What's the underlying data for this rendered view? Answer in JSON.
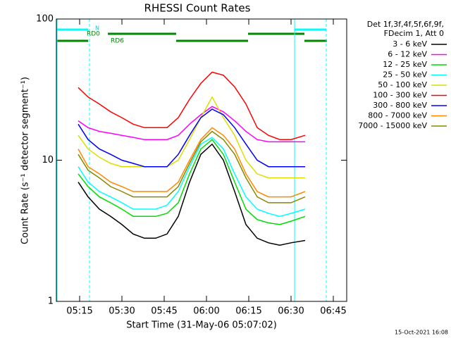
{
  "chart_data": {
    "type": "line",
    "title": "RHESSI Count Rates",
    "x_label": "Start Time (31-May-06 05:07:02)",
    "y_label": "Count Rate (s⁻¹ detector segment⁻¹)",
    "legend_title": [
      "Det 1f,3f,4f,5f,6f,9f,",
      "FDecim 1, Att 0"
    ],
    "annotations": [
      "N",
      "RD0",
      "RD6"
    ],
    "timestamp": "15-Oct-2021 16:08",
    "log_y": true,
    "xlim": [
      6.75,
      109.75
    ],
    "xticks": [
      {
        "value": 15,
        "label": "05:15"
      },
      {
        "value": 30,
        "label": "05:30"
      },
      {
        "value": 45,
        "label": "05:45"
      },
      {
        "value": 60,
        "label": "06:00"
      },
      {
        "value": 75,
        "label": "06:15"
      },
      {
        "value": 90,
        "label": "06:30"
      },
      {
        "value": 105,
        "label": "06:45"
      }
    ],
    "ylim": [
      1,
      100
    ],
    "yticks": [
      1,
      10,
      100
    ],
    "x": [
      14.5,
      18,
      22,
      26,
      30,
      34,
      38,
      42,
      46,
      50,
      54,
      58,
      62,
      66,
      70,
      74,
      78,
      82,
      86,
      90,
      95
    ],
    "series": [
      {
        "name": "3 - 6 keV",
        "color": "#000000",
        "values": [
          7,
          5.5,
          4.5,
          4,
          3.5,
          3,
          2.8,
          2.8,
          3,
          4,
          7,
          11,
          13,
          10,
          6,
          3.5,
          2.8,
          2.6,
          2.5,
          2.6,
          2.7
        ]
      },
      {
        "name": "6 - 12 keV",
        "color": "#ff00ff",
        "values": [
          19,
          17,
          16,
          15.5,
          15,
          14.5,
          14,
          14,
          14,
          15,
          18,
          21,
          24,
          22,
          19,
          16,
          14,
          13.5,
          13.5,
          13.5,
          13.5
        ]
      },
      {
        "name": "12 - 25 keV",
        "color": "#00dd00",
        "values": [
          8,
          6.5,
          5.5,
          5,
          4.5,
          4,
          4,
          4,
          4.2,
          5,
          8,
          12,
          14,
          11,
          7,
          4.5,
          3.8,
          3.6,
          3.5,
          3.7,
          4
        ]
      },
      {
        "name": "25 - 50 keV",
        "color": "#00ffff",
        "values": [
          9,
          7,
          6,
          5.5,
          5,
          4.5,
          4.5,
          4.5,
          4.8,
          6,
          9,
          13,
          14.5,
          12,
          8,
          5.5,
          4.5,
          4.2,
          4,
          4.2,
          4.5
        ]
      },
      {
        "name": "50 - 100 keV",
        "color": "#dddd00",
        "values": [
          15,
          12,
          10.5,
          9.5,
          9,
          9,
          9,
          9,
          9,
          10,
          14,
          20,
          28,
          20,
          15,
          10,
          8,
          7.5,
          7.5,
          7.5,
          7.5
        ]
      },
      {
        "name": "100 - 300 keV",
        "color": "#ff0000",
        "values": [
          32.7,
          28,
          25,
          22,
          20,
          18,
          17,
          17,
          17,
          20,
          27,
          35,
          42,
          40,
          33,
          25,
          17,
          15,
          14,
          14,
          15
        ]
      },
      {
        "name": "300 - 800 keV",
        "color": "#0000ff",
        "values": [
          18,
          14,
          12,
          11,
          10,
          9.5,
          9,
          9,
          9,
          11,
          15,
          20,
          23,
          21,
          17,
          13,
          10,
          9,
          9,
          9,
          9
        ]
      },
      {
        "name": "800 - 7000 keV",
        "color": "#ff8800",
        "values": [
          12,
          9,
          8,
          7,
          6.5,
          6,
          6,
          6,
          6,
          7,
          10,
          14,
          17,
          15,
          12,
          8,
          6,
          5.5,
          5.5,
          5.5,
          6
        ]
      },
      {
        "name": "7000 - 15000 keV",
        "color": "#888800",
        "values": [
          11,
          8.5,
          7.5,
          6.5,
          6,
          5.5,
          5.5,
          5.5,
          5.5,
          6.5,
          9.5,
          13.5,
          16,
          14,
          11,
          7.5,
          5.5,
          5,
          5,
          5,
          5.5
        ]
      }
    ]
  }
}
